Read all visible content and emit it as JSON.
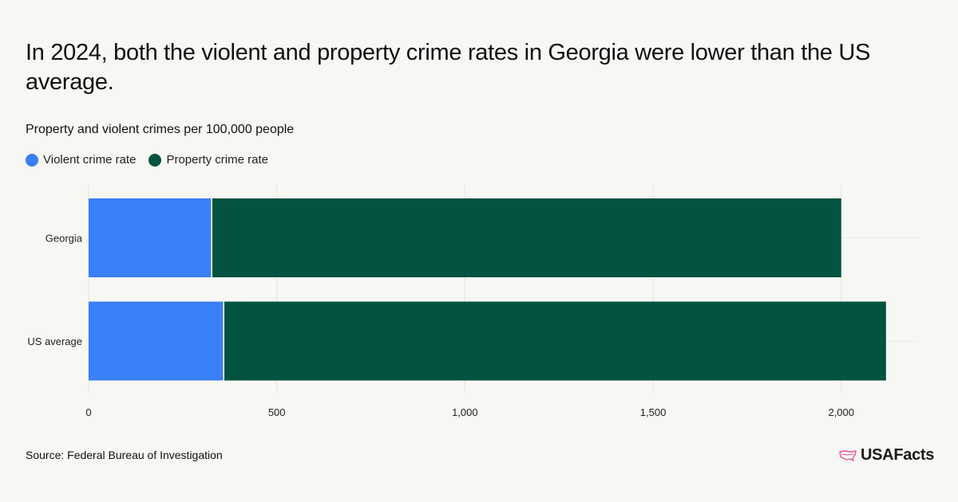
{
  "title": "In 2024, both the violent and property crime rates in Georgia were lower than the US average.",
  "subtitle": "Property and violent crimes per 100,000 people",
  "legend": [
    {
      "label": "Violent crime rate",
      "color": "#3a7ff7"
    },
    {
      "label": "Property crime rate",
      "color": "#02533f"
    }
  ],
  "source": "Source: Federal Bureau of Investigation",
  "brand": "USAFacts",
  "chart_data": {
    "type": "bar",
    "orientation": "horizontal",
    "stacked": true,
    "categories": [
      "Georgia",
      "US average"
    ],
    "series": [
      {
        "name": "Violent crime rate",
        "color": "#3a7ff7",
        "values": [
          327,
          359
        ]
      },
      {
        "name": "Property crime rate",
        "color": "#02533f",
        "values": [
          1673,
          1760
        ]
      }
    ],
    "xlim": [
      0,
      2200
    ],
    "xticks": [
      0,
      500,
      1000,
      1500,
      2000
    ],
    "xtick_labels": [
      "0",
      "500",
      "1,000",
      "1,500",
      "2,000"
    ],
    "grid": true,
    "legend_position": "top-left"
  }
}
